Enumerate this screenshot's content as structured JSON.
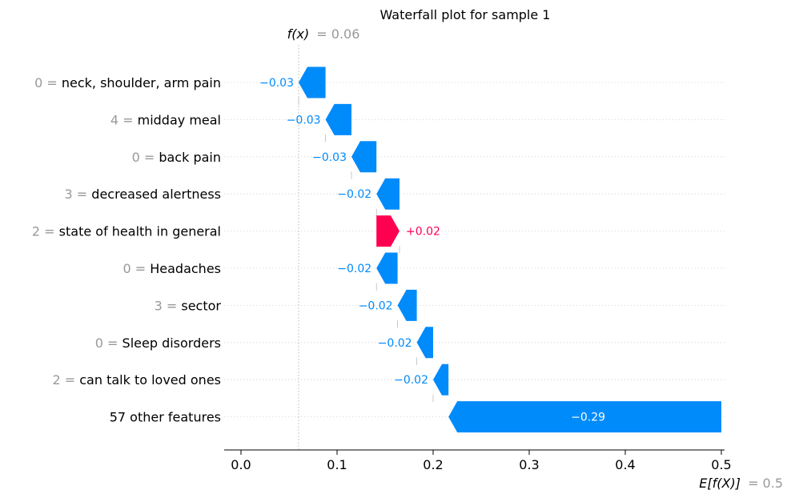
{
  "chart_data": {
    "type": "waterfall",
    "title": "Waterfall plot for sample 1",
    "fx_label": "f(x)",
    "fx_value_text": "= 0.06",
    "fx": 0.06,
    "efx_label": "E[f(X)]",
    "efx_value_text": "= 0.5",
    "base_value": 0.5,
    "xlim": [
      -0.015,
      0.5
    ],
    "x_ticks": [
      0.0,
      0.1,
      0.2,
      0.3,
      0.4,
      0.5
    ],
    "x_tick_labels": [
      "0.0",
      "0.1",
      "0.2",
      "0.3",
      "0.4",
      "0.5"
    ],
    "colors": {
      "positive": "#ff0051",
      "negative": "#008bfb",
      "muted": "#999999"
    },
    "features": [
      {
        "value": "0 =",
        "name": "neck, shoulder, arm pain",
        "start": 0.088,
        "end": 0.06,
        "label": "−0.03"
      },
      {
        "value": "4 =",
        "name": "midday meal",
        "start": 0.115,
        "end": 0.088,
        "label": "−0.03"
      },
      {
        "value": "0 =",
        "name": "back pain",
        "start": 0.141,
        "end": 0.115,
        "label": "−0.03"
      },
      {
        "value": "3 =",
        "name": "decreased alertness",
        "start": 0.165,
        "end": 0.141,
        "label": "−0.02"
      },
      {
        "value": "2 =",
        "name": "state of health in general",
        "start": 0.141,
        "end": 0.165,
        "label": "+0.02"
      },
      {
        "value": "0 =",
        "name": "Headaches",
        "start": 0.163,
        "end": 0.141,
        "label": "−0.02"
      },
      {
        "value": "3 =",
        "name": "sector",
        "start": 0.183,
        "end": 0.163,
        "label": "−0.02"
      },
      {
        "value": "0 =",
        "name": "Sleep disorders",
        "start": 0.2,
        "end": 0.183,
        "label": "−0.02"
      },
      {
        "value": "2 =",
        "name": "can talk to loved ones",
        "start": 0.216,
        "end": 0.2,
        "label": "−0.02"
      },
      {
        "value": "",
        "name": "57 other features",
        "start": 0.5,
        "end": 0.216,
        "label": "−0.29"
      }
    ]
  }
}
